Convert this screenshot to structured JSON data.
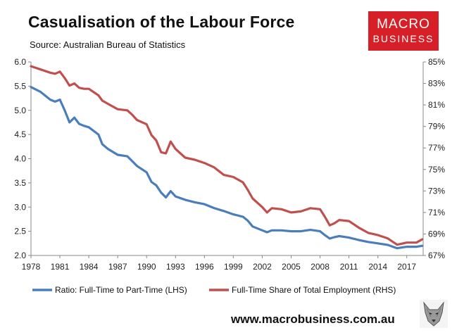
{
  "header": {
    "title": "Casualisation of the Labour Force",
    "source": "Source: Australian Bureau of Statistics",
    "logo_line1": "MACRO",
    "logo_line2": "BUSINESS"
  },
  "footer": {
    "url": "www.macrobusiness.com.au"
  },
  "chart_data": {
    "type": "line",
    "title": "Casualisation of the Labour Force",
    "x_ticks": [
      "1978",
      "1981",
      "1984",
      "1987",
      "1990",
      "1993",
      "1996",
      "1999",
      "2002",
      "2005",
      "2008",
      "2011",
      "2014",
      "2017"
    ],
    "xlim": [
      1978,
      2018.7
    ],
    "y_left": {
      "lim": [
        2.0,
        6.0
      ],
      "ticks": [
        "6.0",
        "5.5",
        "5.0",
        "4.5",
        "4.0",
        "3.5",
        "3.0",
        "2.5",
        "2.0"
      ]
    },
    "y_right": {
      "lim": [
        67,
        85
      ],
      "ticks": [
        "85%",
        "83%",
        "81%",
        "79%",
        "77%",
        "75%",
        "73%",
        "71%",
        "69%",
        "67%"
      ]
    },
    "series": [
      {
        "name": "Ratio: Full-Time to Part-Time (LHS)",
        "axis": "left",
        "color": "#4a7ebb",
        "x": [
          1978,
          1979,
          1980,
          1980.5,
          1981,
          1981.5,
          1982,
          1982.5,
          1983,
          1983.5,
          1984,
          1985,
          1985.4,
          1986,
          1987,
          1988,
          1988.5,
          1989,
          1990,
          1990.5,
          1991,
          1991.5,
          1992,
          1992.5,
          1993,
          1994,
          1995,
          1996,
          1997,
          1998,
          1999,
          2000,
          2000.5,
          2001,
          2002,
          2002.5,
          2003,
          2004,
          2005,
          2006,
          2007,
          2008,
          2008.5,
          2009,
          2009.5,
          2010,
          2011,
          2012,
          2013,
          2014,
          2015,
          2016,
          2017,
          2018,
          2018.6
        ],
        "values": [
          5.48,
          5.38,
          5.22,
          5.18,
          5.22,
          5.0,
          4.75,
          4.85,
          4.72,
          4.68,
          4.65,
          4.5,
          4.3,
          4.2,
          4.08,
          4.05,
          3.95,
          3.85,
          3.72,
          3.52,
          3.45,
          3.3,
          3.2,
          3.33,
          3.22,
          3.15,
          3.1,
          3.06,
          2.98,
          2.92,
          2.85,
          2.8,
          2.72,
          2.6,
          2.52,
          2.48,
          2.52,
          2.52,
          2.5,
          2.5,
          2.53,
          2.5,
          2.42,
          2.35,
          2.38,
          2.4,
          2.37,
          2.32,
          2.28,
          2.25,
          2.22,
          2.15,
          2.18,
          2.18,
          2.2
        ]
      },
      {
        "name": "Full-Time Share of Total Employment (RHS)",
        "axis": "right",
        "color": "#c0504d",
        "x": [
          1978,
          1979,
          1980,
          1980.5,
          1981,
          1981.5,
          1982,
          1982.5,
          1983,
          1983.5,
          1984,
          1985,
          1985.4,
          1986,
          1987,
          1988,
          1988.5,
          1989,
          1990,
          1990.5,
          1991,
          1991.5,
          1992,
          1992.5,
          1993,
          1994,
          1995,
          1996,
          1997,
          1998,
          1999,
          2000,
          2000.5,
          2001,
          2002,
          2002.5,
          2003,
          2004,
          2005,
          2006,
          2007,
          2008,
          2008.5,
          2009,
          2009.5,
          2010,
          2011,
          2012,
          2013,
          2014,
          2015,
          2016,
          2017,
          2018,
          2018.6
        ],
        "values": [
          84.6,
          84.3,
          84.0,
          83.9,
          84.1,
          83.5,
          82.8,
          83.0,
          82.6,
          82.5,
          82.5,
          81.9,
          81.4,
          81.1,
          80.6,
          80.5,
          80.1,
          79.6,
          79.2,
          78.2,
          77.7,
          76.6,
          76.5,
          77.6,
          76.9,
          76.1,
          75.9,
          75.6,
          75.2,
          74.5,
          74.3,
          73.8,
          73.1,
          72.3,
          71.5,
          71.0,
          71.4,
          71.3,
          71.0,
          71.1,
          71.4,
          71.3,
          70.6,
          69.8,
          70.0,
          70.3,
          70.2,
          69.6,
          69.1,
          68.9,
          68.6,
          68.0,
          68.2,
          68.2,
          68.5
        ]
      }
    ],
    "legend_position": "bottom"
  }
}
